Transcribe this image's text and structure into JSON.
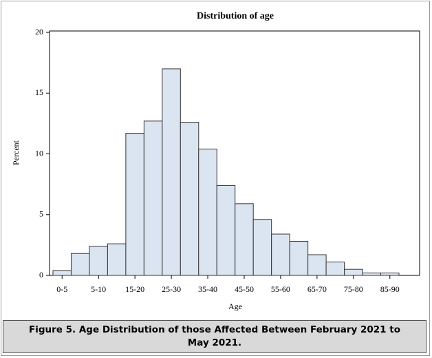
{
  "chart_data": {
    "type": "bar",
    "title": "Distribution of age",
    "x_label": "Age",
    "y_label": "Percent",
    "categories": [
      "0-5",
      null,
      "5-10",
      null,
      "15-20",
      null,
      "25-30",
      null,
      "35-40",
      null,
      "45-50",
      null,
      "55-60",
      null,
      "65-70",
      null,
      "75-80",
      null,
      "85-90"
    ],
    "values": [
      0.4,
      1.8,
      2.4,
      2.6,
      11.7,
      12.7,
      17,
      12.6,
      10.4,
      7.4,
      5.9,
      4.6,
      3.4,
      2.8,
      1.7,
      1.1,
      0.5,
      0.2,
      0.2
    ],
    "color": "#dbe5f1",
    "ylim": [
      0,
      20
    ],
    "yticks": [
      0,
      5,
      10,
      15,
      20
    ],
    "grid": false
  },
  "caption": "Figure 5. Age Distribution of those Affected Between February 2021 to May 2021."
}
